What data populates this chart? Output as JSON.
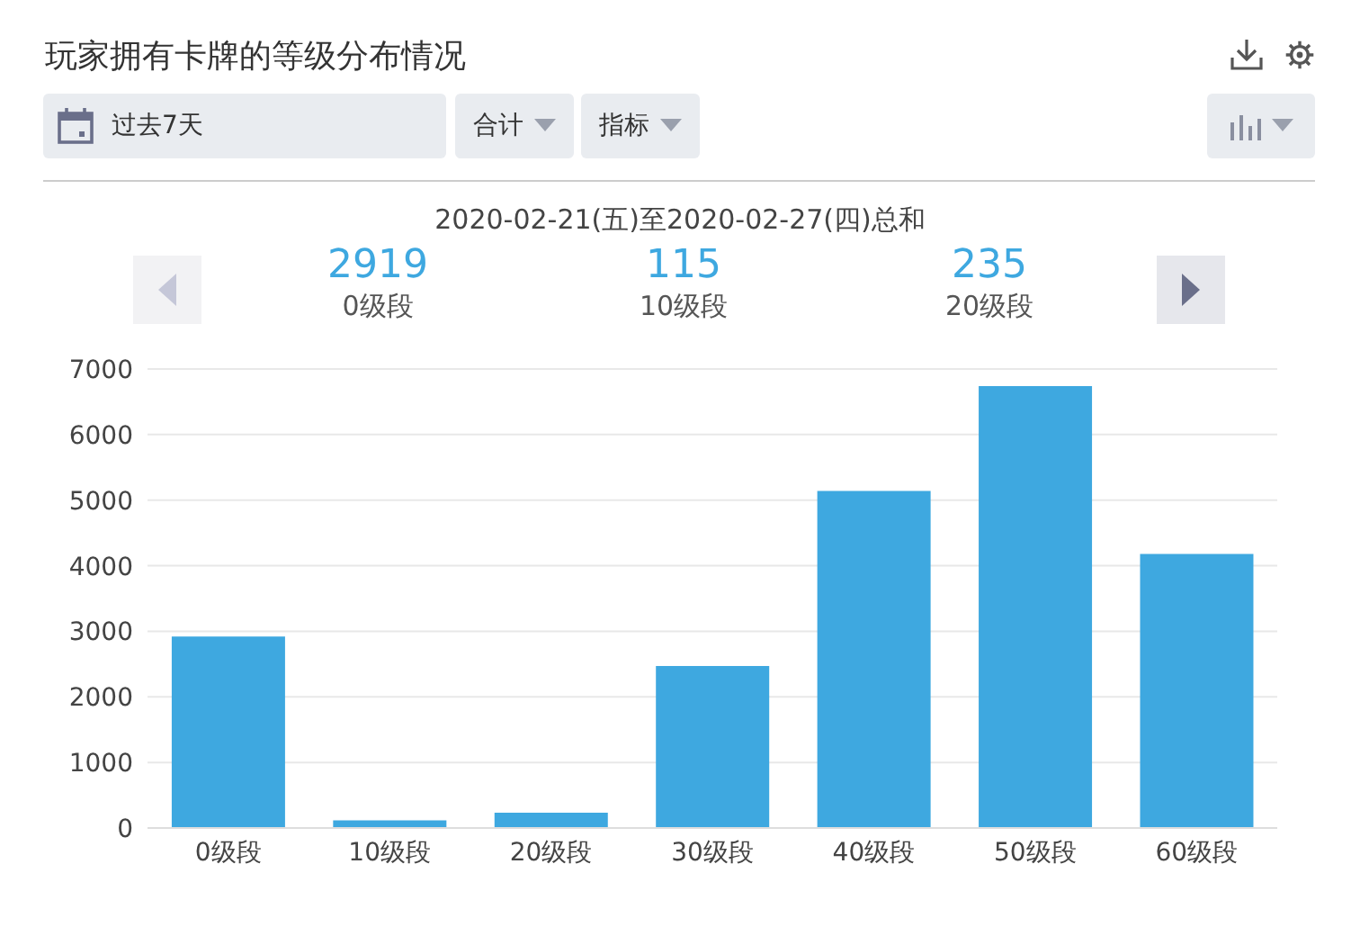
{
  "chart_data": {
    "type": "bar",
    "title": "玩家拥有卡牌的等级分布情况",
    "subtitle": "2020-02-21(五)至2020-02-27(四)总和",
    "annotations": [
      "过去7天",
      "合计",
      "指标",
      "2919",
      "0级段",
      "115",
      "10级段",
      "235",
      "20级段"
    ],
    "categories": [
      "0级段",
      "10级段",
      "20级段",
      "30级段",
      "40级段",
      "50级段",
      "60级段"
    ],
    "values": [
      2919,
      115,
      235,
      2470,
      5140,
      6740,
      4180
    ],
    "color": "#3ea8e0",
    "ylim": [
      0,
      7000
    ],
    "yticks": [
      0,
      1000,
      2000,
      3000,
      4000,
      5000,
      6000,
      7000
    ],
    "grid": "y",
    "legend": false
  }
}
